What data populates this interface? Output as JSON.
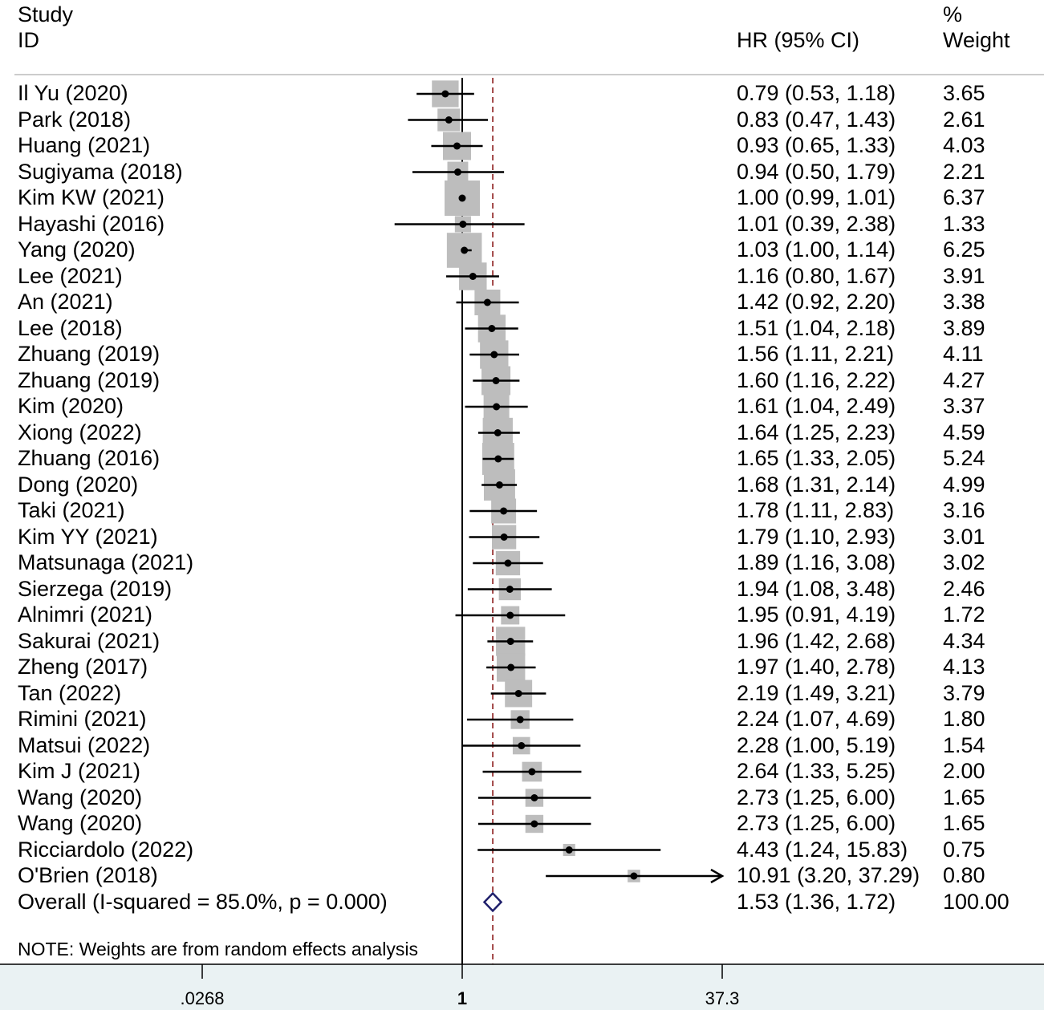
{
  "chart_data": {
    "type": "forest",
    "headers": {
      "study_line1": "Study",
      "study_line2": "ID",
      "effect": "HR (95% CI)",
      "weight_line1": "%",
      "weight_line2": "Weight"
    },
    "x_axis": {
      "scale": "log",
      "ticks": [
        0.0268,
        1,
        37.3
      ],
      "tick_labels": [
        ".0268",
        "1",
        "37.3"
      ],
      "null_line": 1,
      "range": [
        0.0268,
        37.3
      ]
    },
    "studies": [
      {
        "label": "Il Yu (2020)",
        "hr": 0.79,
        "lo": 0.53,
        "hi": 1.18,
        "ci_text": "0.79 (0.53, 1.18)",
        "weight": 3.65,
        "weight_text": "3.65"
      },
      {
        "label": "Park (2018)",
        "hr": 0.83,
        "lo": 0.47,
        "hi": 1.43,
        "ci_text": "0.83 (0.47, 1.43)",
        "weight": 2.61,
        "weight_text": "2.61"
      },
      {
        "label": "Huang (2021)",
        "hr": 0.93,
        "lo": 0.65,
        "hi": 1.33,
        "ci_text": "0.93 (0.65, 1.33)",
        "weight": 4.03,
        "weight_text": "4.03"
      },
      {
        "label": "Sugiyama (2018)",
        "hr": 0.94,
        "lo": 0.5,
        "hi": 1.79,
        "ci_text": "0.94 (0.50, 1.79)",
        "weight": 2.21,
        "weight_text": "2.21"
      },
      {
        "label": "Kim KW (2021)",
        "hr": 1.0,
        "lo": 0.99,
        "hi": 1.01,
        "ci_text": "1.00 (0.99, 1.01)",
        "weight": 6.37,
        "weight_text": "6.37"
      },
      {
        "label": "Hayashi (2016)",
        "hr": 1.01,
        "lo": 0.39,
        "hi": 2.38,
        "ci_text": "1.01 (0.39, 2.38)",
        "weight": 1.33,
        "weight_text": "1.33"
      },
      {
        "label": "Yang (2020)",
        "hr": 1.03,
        "lo": 1.0,
        "hi": 1.14,
        "ci_text": "1.03 (1.00, 1.14)",
        "weight": 6.25,
        "weight_text": "6.25"
      },
      {
        "label": "Lee (2021)",
        "hr": 1.16,
        "lo": 0.8,
        "hi": 1.67,
        "ci_text": "1.16 (0.80, 1.67)",
        "weight": 3.91,
        "weight_text": "3.91"
      },
      {
        "label": "An (2021)",
        "hr": 1.42,
        "lo": 0.92,
        "hi": 2.2,
        "ci_text": "1.42 (0.92, 2.20)",
        "weight": 3.38,
        "weight_text": "3.38"
      },
      {
        "label": "Lee (2018)",
        "hr": 1.51,
        "lo": 1.04,
        "hi": 2.18,
        "ci_text": "1.51 (1.04, 2.18)",
        "weight": 3.89,
        "weight_text": "3.89"
      },
      {
        "label": "Zhuang (2019)",
        "hr": 1.56,
        "lo": 1.11,
        "hi": 2.21,
        "ci_text": "1.56 (1.11, 2.21)",
        "weight": 4.11,
        "weight_text": "4.11"
      },
      {
        "label": "Zhuang (2019)",
        "hr": 1.6,
        "lo": 1.16,
        "hi": 2.22,
        "ci_text": "1.60 (1.16, 2.22)",
        "weight": 4.27,
        "weight_text": "4.27"
      },
      {
        "label": "Kim (2020)",
        "hr": 1.61,
        "lo": 1.04,
        "hi": 2.49,
        "ci_text": "1.61 (1.04, 2.49)",
        "weight": 3.37,
        "weight_text": "3.37"
      },
      {
        "label": "Xiong (2022)",
        "hr": 1.64,
        "lo": 1.25,
        "hi": 2.23,
        "ci_text": "1.64 (1.25, 2.23)",
        "weight": 4.59,
        "weight_text": "4.59"
      },
      {
        "label": "Zhuang (2016)",
        "hr": 1.65,
        "lo": 1.33,
        "hi": 2.05,
        "ci_text": "1.65 (1.33, 2.05)",
        "weight": 5.24,
        "weight_text": "5.24"
      },
      {
        "label": "Dong (2020)",
        "hr": 1.68,
        "lo": 1.31,
        "hi": 2.14,
        "ci_text": "1.68 (1.31, 2.14)",
        "weight": 4.99,
        "weight_text": "4.99"
      },
      {
        "label": "Taki (2021)",
        "hr": 1.78,
        "lo": 1.11,
        "hi": 2.83,
        "ci_text": "1.78 (1.11, 2.83)",
        "weight": 3.16,
        "weight_text": "3.16"
      },
      {
        "label": "Kim YY (2021)",
        "hr": 1.79,
        "lo": 1.1,
        "hi": 2.93,
        "ci_text": "1.79 (1.10, 2.93)",
        "weight": 3.01,
        "weight_text": "3.01"
      },
      {
        "label": "Matsunaga (2021)",
        "hr": 1.89,
        "lo": 1.16,
        "hi": 3.08,
        "ci_text": "1.89 (1.16, 3.08)",
        "weight": 3.02,
        "weight_text": "3.02"
      },
      {
        "label": "Sierzega (2019)",
        "hr": 1.94,
        "lo": 1.08,
        "hi": 3.48,
        "ci_text": "1.94 (1.08, 3.48)",
        "weight": 2.46,
        "weight_text": "2.46"
      },
      {
        "label": "Alnimri (2021)",
        "hr": 1.95,
        "lo": 0.91,
        "hi": 4.19,
        "ci_text": "1.95 (0.91, 4.19)",
        "weight": 1.72,
        "weight_text": "1.72"
      },
      {
        "label": "Sakurai (2021)",
        "hr": 1.96,
        "lo": 1.42,
        "hi": 2.68,
        "ci_text": "1.96 (1.42, 2.68)",
        "weight": 4.34,
        "weight_text": "4.34"
      },
      {
        "label": "Zheng (2017)",
        "hr": 1.97,
        "lo": 1.4,
        "hi": 2.78,
        "ci_text": "1.97 (1.40, 2.78)",
        "weight": 4.13,
        "weight_text": "4.13"
      },
      {
        "label": "Tan (2022)",
        "hr": 2.19,
        "lo": 1.49,
        "hi": 3.21,
        "ci_text": "2.19 (1.49, 3.21)",
        "weight": 3.79,
        "weight_text": "3.79"
      },
      {
        "label": "Rimini (2021)",
        "hr": 2.24,
        "lo": 1.07,
        "hi": 4.69,
        "ci_text": "2.24 (1.07, 4.69)",
        "weight": 1.8,
        "weight_text": "1.80"
      },
      {
        "label": "Matsui (2022)",
        "hr": 2.28,
        "lo": 1.0,
        "hi": 5.19,
        "ci_text": "2.28 (1.00, 5.19)",
        "weight": 1.54,
        "weight_text": "1.54"
      },
      {
        "label": "Kim J (2021)",
        "hr": 2.64,
        "lo": 1.33,
        "hi": 5.25,
        "ci_text": "2.64 (1.33, 5.25)",
        "weight": 2.0,
        "weight_text": "2.00"
      },
      {
        "label": "Wang (2020)",
        "hr": 2.73,
        "lo": 1.25,
        "hi": 6.0,
        "ci_text": "2.73 (1.25, 6.00)",
        "weight": 1.65,
        "weight_text": "1.65"
      },
      {
        "label": "Wang (2020)",
        "hr": 2.73,
        "lo": 1.25,
        "hi": 6.0,
        "ci_text": "2.73 (1.25, 6.00)",
        "weight": 1.65,
        "weight_text": "1.65"
      },
      {
        "label": "Ricciardolo (2022)",
        "hr": 4.43,
        "lo": 1.24,
        "hi": 15.83,
        "ci_text": "4.43 (1.24, 15.83)",
        "weight": 0.75,
        "weight_text": "0.75"
      },
      {
        "label": "O'Brien (2018)",
        "hr": 10.91,
        "lo": 3.2,
        "hi": 37.29,
        "ci_text": "10.91 (3.20, 37.29)",
        "weight": 0.8,
        "weight_text": "0.80",
        "arrow_right": true
      }
    ],
    "overall": {
      "label": "Overall  (I-squared = 85.0%, p = 0.000)",
      "hr": 1.53,
      "lo": 1.36,
      "hi": 1.72,
      "ci_text": "1.53 (1.36, 1.72)",
      "weight_text": "100.00"
    },
    "note": "NOTE: Weights are from random effects analysis",
    "colors": {
      "box": "#bdbdbd",
      "ci_line": "#000000",
      "point": "#000000",
      "diamond": "#1f1f6b",
      "overall_line": "#8b1a1a",
      "bottom_band": "#eaf2f3"
    }
  }
}
